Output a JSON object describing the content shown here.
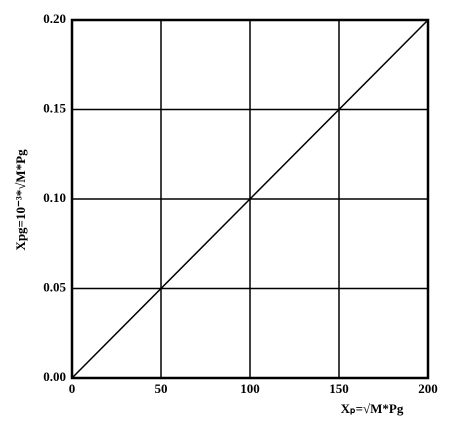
{
  "chart_data": {
    "type": "line",
    "xlabel": "Xₚ=√M*Pg",
    "ylabel": "Xpg=10⁻³*√M*Pg",
    "x": [
      0,
      200
    ],
    "series": [
      {
        "color": "#000000",
        "values": [
          0,
          0.2
        ]
      }
    ],
    "xlim": [
      0,
      200
    ],
    "xticks": [
      0,
      50,
      100,
      150,
      200
    ],
    "ylim": [
      0,
      0.2
    ],
    "yticks": [
      {
        "value": 0,
        "label": "0.00"
      },
      0.05,
      {
        "value": 0.1,
        "label": "0.10"
      },
      0.15,
      {
        "value": 0.2,
        "label": "0.20"
      }
    ],
    "grid": true
  }
}
